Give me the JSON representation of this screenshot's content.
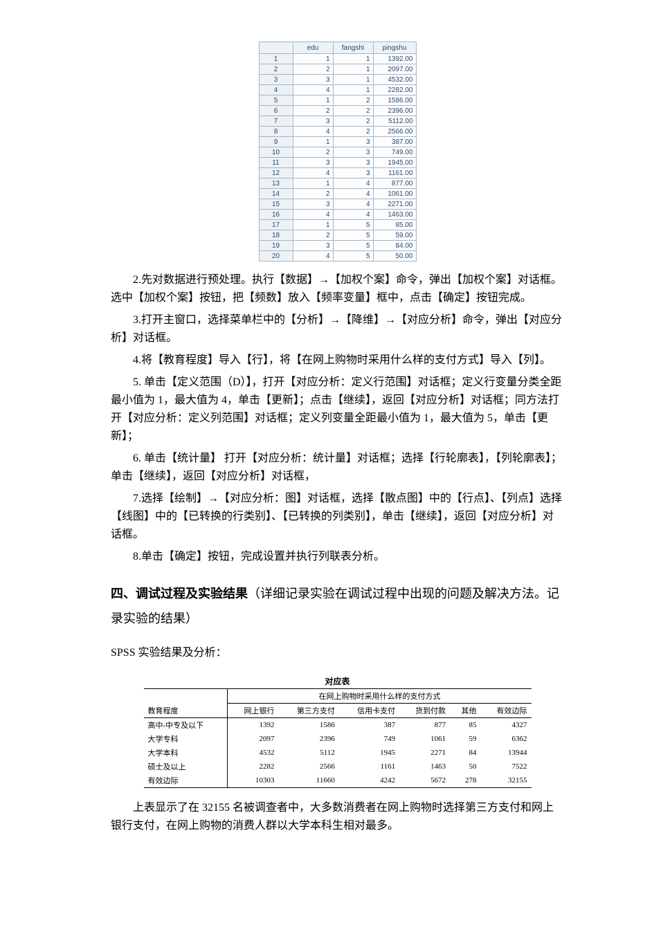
{
  "spss_table": {
    "headers": [
      "edu",
      "fangshi",
      "pingshu"
    ],
    "rows": [
      {
        "idx": "1",
        "edu": "1",
        "fangshi": "1",
        "pingshu": "1392.00"
      },
      {
        "idx": "2",
        "edu": "2",
        "fangshi": "1",
        "pingshu": "2097.00"
      },
      {
        "idx": "3",
        "edu": "3",
        "fangshi": "1",
        "pingshu": "4532.00"
      },
      {
        "idx": "4",
        "edu": "4",
        "fangshi": "1",
        "pingshu": "2282.00"
      },
      {
        "idx": "5",
        "edu": "1",
        "fangshi": "2",
        "pingshu": "1586.00"
      },
      {
        "idx": "6",
        "edu": "2",
        "fangshi": "2",
        "pingshu": "2396.00"
      },
      {
        "idx": "7",
        "edu": "3",
        "fangshi": "2",
        "pingshu": "5112.00"
      },
      {
        "idx": "8",
        "edu": "4",
        "fangshi": "2",
        "pingshu": "2566.00"
      },
      {
        "idx": "9",
        "edu": "1",
        "fangshi": "3",
        "pingshu": "387.00"
      },
      {
        "idx": "10",
        "edu": "2",
        "fangshi": "3",
        "pingshu": "749.00"
      },
      {
        "idx": "11",
        "edu": "3",
        "fangshi": "3",
        "pingshu": "1945.00"
      },
      {
        "idx": "12",
        "edu": "4",
        "fangshi": "3",
        "pingshu": "1161.00"
      },
      {
        "idx": "13",
        "edu": "1",
        "fangshi": "4",
        "pingshu": "877.00"
      },
      {
        "idx": "14",
        "edu": "2",
        "fangshi": "4",
        "pingshu": "1061.00"
      },
      {
        "idx": "15",
        "edu": "3",
        "fangshi": "4",
        "pingshu": "2271.00"
      },
      {
        "idx": "16",
        "edu": "4",
        "fangshi": "4",
        "pingshu": "1463.00"
      },
      {
        "idx": "17",
        "edu": "1",
        "fangshi": "5",
        "pingshu": "85.00"
      },
      {
        "idx": "18",
        "edu": "2",
        "fangshi": "5",
        "pingshu": "59.00"
      },
      {
        "idx": "19",
        "edu": "3",
        "fangshi": "5",
        "pingshu": "84.00"
      },
      {
        "idx": "20",
        "edu": "4",
        "fangshi": "5",
        "pingshu": "50.00"
      }
    ]
  },
  "paragraphs": {
    "p2": "2.先对数据进行预处理。执行【数据】→【加权个案】命令，弹出【加权个案】对话框。选中【加权个案】按钮，把【频数】放入【频率变量】框中，点击【确定】按钮完成。",
    "p3": "3.打开主窗口，选择菜单栏中的【分析】→【降维】→【对应分析】命令，弹出【对应分析】对话框。",
    "p4": "4.将【教育程度】导入【行】，将【在网上购物时采用什么样的支付方式】导入【列】。",
    "p5": "5. 单击【定义范围（D）】，打开【对应分析：定义行范围】对话框；定义行变量分类全距最小值为 1，最大值为 4，单击【更新】；点击【继续】，返回【对应分析】对话框；同方法打开【对应分析：定义列范围】对话框；定义列变量全距最小值为 1，最大值为 5，单击【更新】；",
    "p6": "6. 单击【统计量】 打开【对应分析：统计量】对话框；选择【行轮廓表】，【列轮廓表】；单击【继续】，返回【对应分析】对话框，",
    "p7": "7.选择【绘制】→【对应分析：图】对话框，选择【散点图】中的【行点】、【列点】选择【线图】中的【已转换的行类别】、【已转换的列类别】，单击【继续】，返回【对应分析】对话框。",
    "p8": "8.单击【确定】按钮，完成设置并执行列联表分析。"
  },
  "section4": {
    "bold": "四、调试过程及实验结果",
    "rest": "（详细记录实验在调试过程中出现的问题及解决方法。记录实验的结果）"
  },
  "subhead": "SPSS 实验结果及分析：",
  "corr_table": {
    "title": "对应表",
    "stub_header": "教育程度",
    "group_header": "在网上购物时采用什么样的支付方式",
    "columns": [
      "网上银行",
      "第三方支付",
      "信用卡支付",
      "货到付款",
      "其他",
      "有效边际"
    ],
    "rows": [
      {
        "label": "高中-中专及以下",
        "cells": [
          "1392",
          "1586",
          "387",
          "877",
          "85",
          "4327"
        ]
      },
      {
        "label": "大学专科",
        "cells": [
          "2097",
          "2396",
          "749",
          "1061",
          "59",
          "6362"
        ]
      },
      {
        "label": "大学本科",
        "cells": [
          "4532",
          "5112",
          "1945",
          "2271",
          "84",
          "13944"
        ]
      },
      {
        "label": "硕士及以上",
        "cells": [
          "2282",
          "2566",
          "1161",
          "1463",
          "50",
          "7522"
        ]
      },
      {
        "label": "有效边际",
        "cells": [
          "10303",
          "11660",
          "4242",
          "5672",
          "278",
          "32155"
        ]
      }
    ]
  },
  "concluding": "上表显示了在 32155 名被调查者中，大多数消费者在网上购物时选择第三方支付和网上银行支付，在网上购物的消费人群以大学本科生相对最多。"
}
